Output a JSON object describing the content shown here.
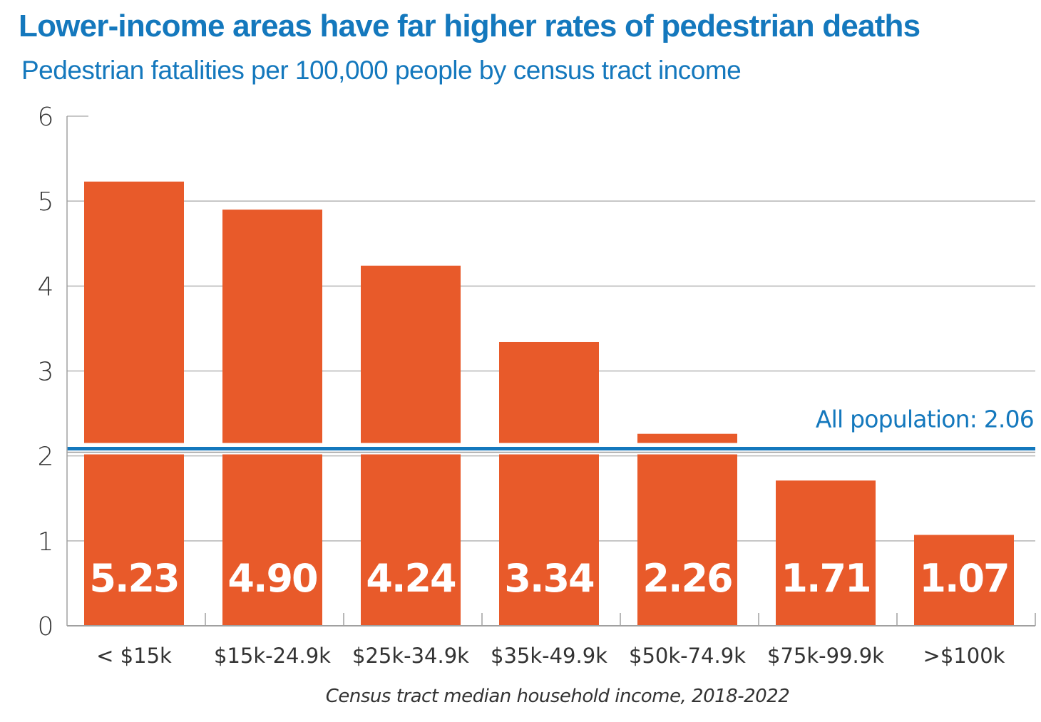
{
  "chart_data": {
    "type": "bar",
    "title": "Lower-income areas have far higher rates of pedestrian deaths",
    "subtitle": "Pedestrian fatalities per 100,000 people by census tract income",
    "xlabel": "Census tract median household income, 2018-2022",
    "ylabel": "",
    "categories": [
      "< $15k",
      "$15k-24.9k",
      "$25k-34.9k",
      "$35k-49.9k",
      "$50k-74.9k",
      "$75k-99.9k",
      ">$100k"
    ],
    "values": [
      5.23,
      4.9,
      4.24,
      3.34,
      2.26,
      1.71,
      1.07
    ],
    "value_labels": [
      "5.23",
      "4.90",
      "4.24",
      "3.34",
      "2.26",
      "1.71",
      "1.07"
    ],
    "ylim": [
      0,
      6
    ],
    "yticks": [
      0,
      1,
      2,
      3,
      4,
      5,
      6
    ],
    "grid": true,
    "reference_line": {
      "label": "All population: 2.06",
      "value": 2.06
    },
    "colors": {
      "bar": "#e85a2a",
      "accent": "#1478bd",
      "grid": "#b5b5b5",
      "axis": "#a0a0a0"
    }
  }
}
